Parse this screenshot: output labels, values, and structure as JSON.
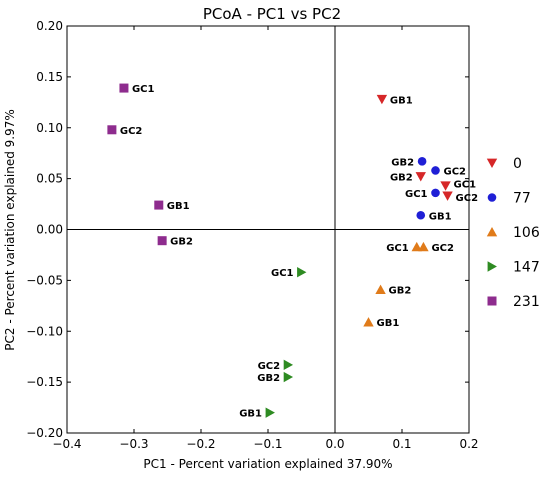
{
  "chart_data": {
    "type": "scatter",
    "title": "PCoA - PC1 vs PC2",
    "xlabel": "PC1 - Percent variation explained 37.90%",
    "ylabel": "PC2 - Percent variation explained 9.97%",
    "xlim": [
      -0.4,
      0.2
    ],
    "ylim": [
      -0.2,
      0.2
    ],
    "xticks": [
      "−0.4",
      "−0.3",
      "−0.2",
      "−0.1",
      "0.0",
      "0.1",
      "0.2"
    ],
    "yticks": [
      "−0.20",
      "−0.15",
      "−0.10",
      "−0.05",
      "0.00",
      "0.05",
      "0.10",
      "0.15",
      "0.20"
    ],
    "xtick_values": [
      -0.4,
      -0.3,
      -0.2,
      -0.1,
      0.0,
      0.1,
      0.2
    ],
    "ytick_values": [
      -0.2,
      -0.15,
      -0.1,
      -0.05,
      0.0,
      0.05,
      0.1,
      0.15,
      0.2
    ],
    "reference_lines": {
      "x": 0,
      "y": 0
    },
    "legend_position": "right",
    "series": [
      {
        "name": "0",
        "color": "#d62728",
        "marker": "triangle-down",
        "points": [
          {
            "x": 0.07,
            "y": 0.128,
            "label": "GB1"
          },
          {
            "x": 0.128,
            "y": 0.052,
            "label": "GB2"
          },
          {
            "x": 0.165,
            "y": 0.043,
            "label": "GC1"
          },
          {
            "x": 0.168,
            "y": 0.033,
            "label": "GC2"
          }
        ]
      },
      {
        "name": "77",
        "color": "#1f1fd6",
        "marker": "circle",
        "points": [
          {
            "x": 0.13,
            "y": 0.067,
            "label": "GB2"
          },
          {
            "x": 0.15,
            "y": 0.058,
            "label": "GC2"
          },
          {
            "x": 0.15,
            "y": 0.036,
            "label": "GC1"
          },
          {
            "x": 0.128,
            "y": 0.014,
            "label": "GB1"
          }
        ]
      },
      {
        "name": "106",
        "color": "#e07b1a",
        "marker": "triangle-up",
        "points": [
          {
            "x": 0.122,
            "y": -0.017,
            "label": "GC1"
          },
          {
            "x": 0.132,
            "y": -0.017,
            "label": "GC2"
          },
          {
            "x": 0.068,
            "y": -0.059,
            "label": "GB2"
          },
          {
            "x": 0.05,
            "y": -0.091,
            "label": "GB1"
          }
        ]
      },
      {
        "name": "147",
        "color": "#2e8b22",
        "marker": "triangle-right",
        "points": [
          {
            "x": -0.05,
            "y": -0.042,
            "label": "GC1"
          },
          {
            "x": -0.07,
            "y": -0.133,
            "label": "GC2"
          },
          {
            "x": -0.07,
            "y": -0.145,
            "label": "GB2"
          },
          {
            "x": -0.097,
            "y": -0.18,
            "label": "GB1"
          }
        ]
      },
      {
        "name": "231",
        "color": "#8e2c8e",
        "marker": "square",
        "points": [
          {
            "x": -0.315,
            "y": 0.139,
            "label": "GC1"
          },
          {
            "x": -0.333,
            "y": 0.098,
            "label": "GC2"
          },
          {
            "x": -0.263,
            "y": 0.024,
            "label": "GB1"
          },
          {
            "x": -0.258,
            "y": -0.011,
            "label": "GB2"
          }
        ]
      }
    ]
  }
}
